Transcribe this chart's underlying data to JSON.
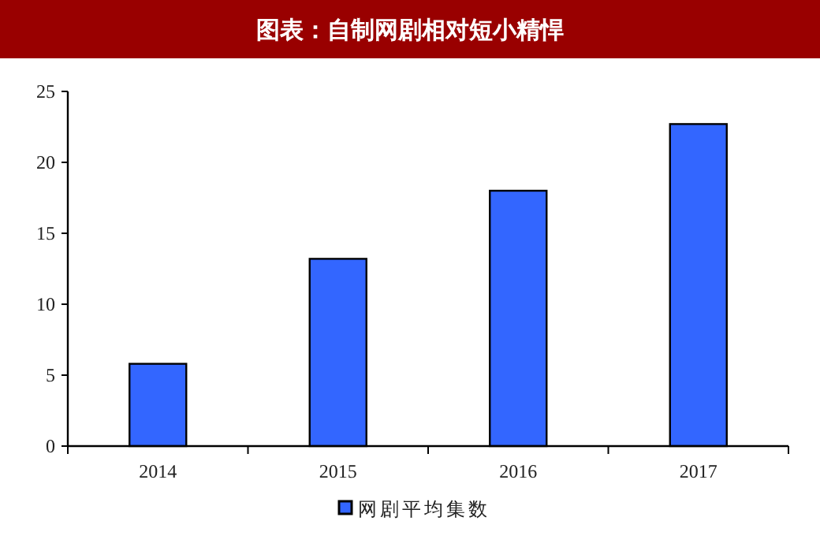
{
  "chart_data": {
    "type": "bar",
    "title": "图表：自制网剧相对短小精悍",
    "categories": [
      "2014",
      "2015",
      "2016",
      "2017"
    ],
    "series": [
      {
        "name": "网剧平均集数",
        "color": "#3366ff",
        "values": [
          5.8,
          13.2,
          18.0,
          22.7
        ]
      }
    ],
    "ylim": [
      0,
      25
    ],
    "yticks": [
      0,
      5,
      10,
      15,
      20,
      25
    ],
    "grid": false,
    "legend": "bottom"
  }
}
